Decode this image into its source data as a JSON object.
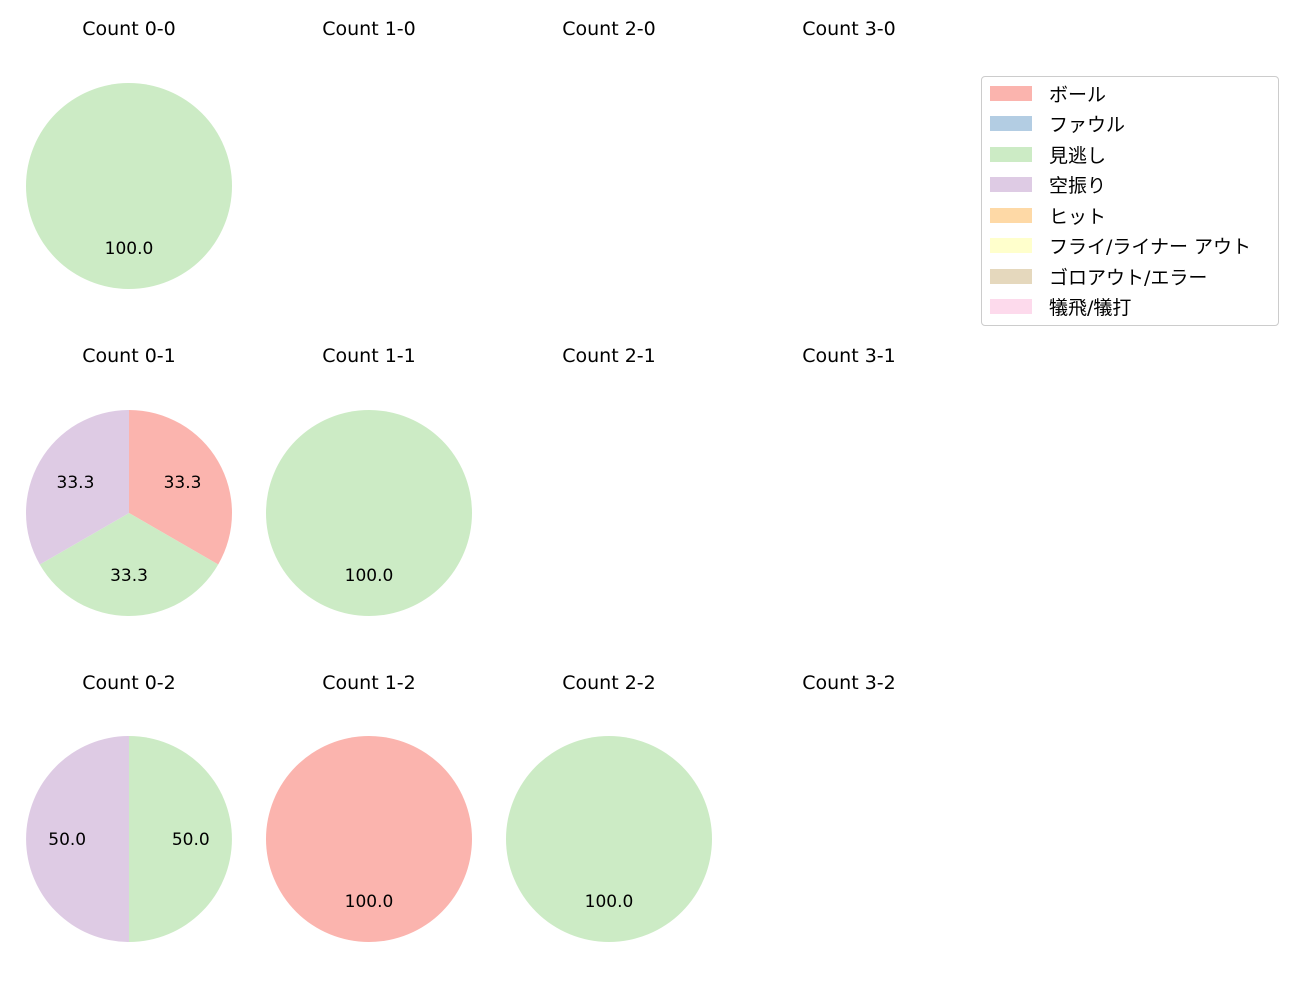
{
  "chart_data": {
    "type": "pie",
    "layout": {
      "rows": 3,
      "cols": 4,
      "legend_position": "upper right"
    },
    "legend": [
      {
        "label": "ボール",
        "color": "#fbb4ae"
      },
      {
        "label": "ファウル",
        "color": "#b3cde3"
      },
      {
        "label": "見逃し",
        "color": "#ccebc5"
      },
      {
        "label": "空振り",
        "color": "#decbe4"
      },
      {
        "label": "ヒット",
        "color": "#fed9a6"
      },
      {
        "label": "フライ/ライナー アウト",
        "color": "#ffffcc"
      },
      {
        "label": "ゴロアウト/エラー",
        "color": "#e5d8bd"
      },
      {
        "label": "犠飛/犠打",
        "color": "#fddaec"
      }
    ],
    "subplots": [
      {
        "title": "Count 0-0",
        "row": 0,
        "col": 0,
        "slices": [
          {
            "category": "見逃し",
            "value": 100.0,
            "label": "100.0"
          }
        ]
      },
      {
        "title": "Count 1-0",
        "row": 0,
        "col": 1,
        "slices": []
      },
      {
        "title": "Count 2-0",
        "row": 0,
        "col": 2,
        "slices": []
      },
      {
        "title": "Count 3-0",
        "row": 0,
        "col": 3,
        "slices": []
      },
      {
        "title": "Count 0-1",
        "row": 1,
        "col": 0,
        "slices": [
          {
            "category": "ボール",
            "value": 33.3,
            "label": "33.3"
          },
          {
            "category": "見逃し",
            "value": 33.3,
            "label": "33.3"
          },
          {
            "category": "空振り",
            "value": 33.3,
            "label": "33.3"
          }
        ]
      },
      {
        "title": "Count 1-1",
        "row": 1,
        "col": 1,
        "slices": [
          {
            "category": "見逃し",
            "value": 100.0,
            "label": "100.0"
          }
        ]
      },
      {
        "title": "Count 2-1",
        "row": 1,
        "col": 2,
        "slices": []
      },
      {
        "title": "Count 3-1",
        "row": 1,
        "col": 3,
        "slices": []
      },
      {
        "title": "Count 0-2",
        "row": 2,
        "col": 0,
        "slices": [
          {
            "category": "見逃し",
            "value": 50.0,
            "label": "50.0"
          },
          {
            "category": "空振り",
            "value": 50.0,
            "label": "50.0"
          }
        ]
      },
      {
        "title": "Count 1-2",
        "row": 2,
        "col": 1,
        "slices": [
          {
            "category": "ボール",
            "value": 100.0,
            "label": "100.0"
          }
        ]
      },
      {
        "title": "Count 2-2",
        "row": 2,
        "col": 2,
        "slices": [
          {
            "category": "見逃し",
            "value": 100.0,
            "label": "100.0"
          }
        ]
      },
      {
        "title": "Count 3-2",
        "row": 2,
        "col": 3,
        "slices": []
      }
    ]
  }
}
